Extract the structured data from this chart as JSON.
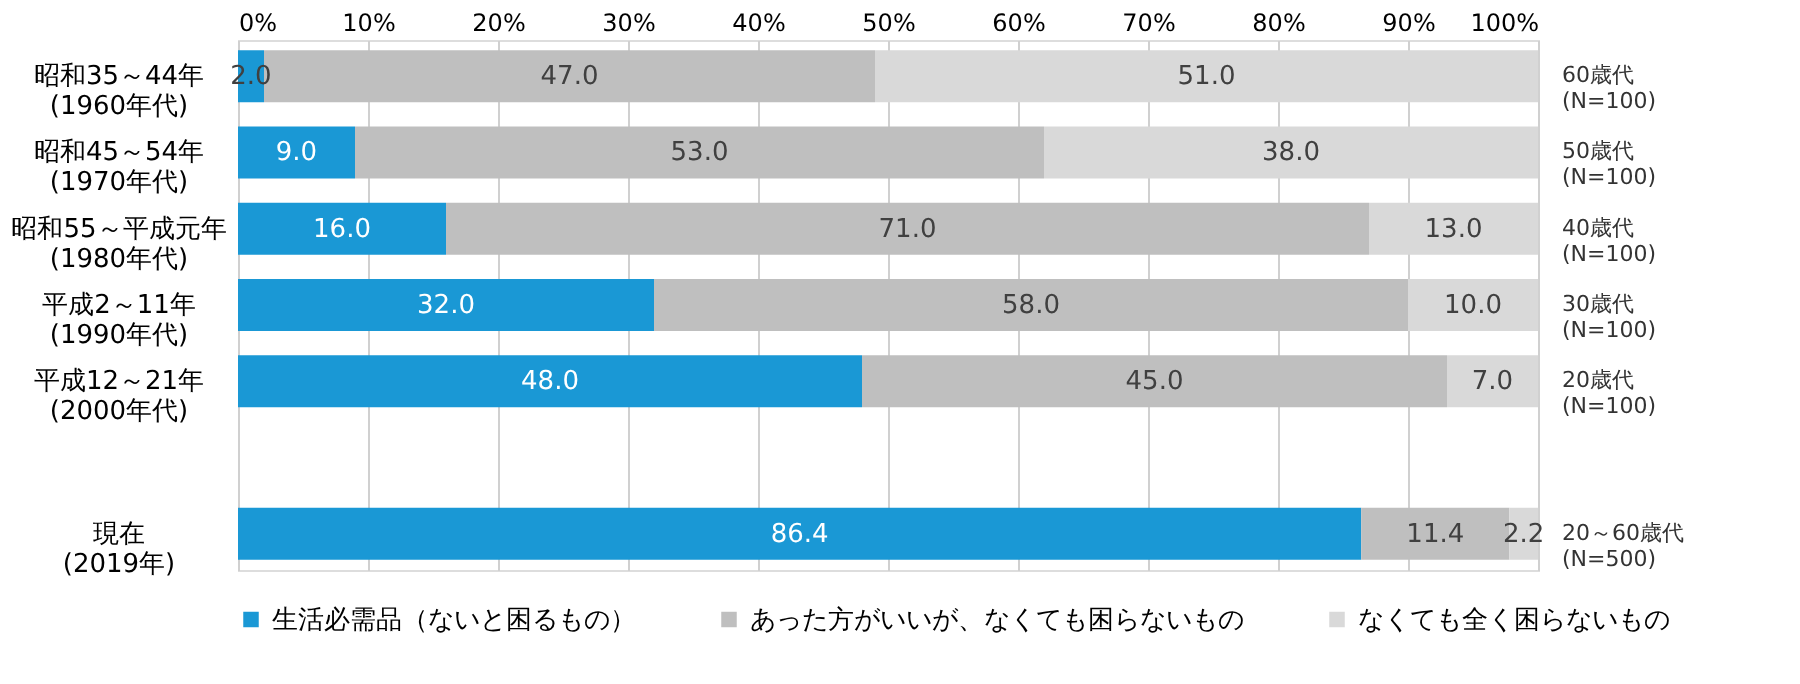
{
  "chart_data": {
    "type": "bar",
    "orientation": "horizontal",
    "stacked": true,
    "categories": [
      "昭和35～44年\n(1960年代)",
      "昭和45～54年\n(1970年代)",
      "昭和55～平成元年\n(1980年代)",
      "平成2～11年\n(1990年代)",
      "平成12～21年\n(2000年代)",
      null,
      "現在\n(2019年)"
    ],
    "series": [
      {
        "name": "生活必需品（ないと困るもの）",
        "color": "#1a98d5",
        "values": [
          2.0,
          9.0,
          16.0,
          32.0,
          48.0,
          null,
          86.4
        ],
        "value_labels": [
          "2.0",
          "9.0",
          "16.0",
          "32.0",
          "48.0",
          null,
          "86.4"
        ]
      },
      {
        "name": "あった方がいいが、なくても困らないもの",
        "color": "#bfbfbf",
        "values": [
          47.0,
          53.0,
          71.0,
          58.0,
          45.0,
          null,
          11.4
        ],
        "value_labels": [
          "47.0",
          "53.0",
          "71.0",
          "58.0",
          "45.0",
          null,
          "11.4"
        ]
      },
      {
        "name": "なくても全く困らないもの",
        "color": "#d9d9d9",
        "values": [
          51.0,
          38.0,
          13.0,
          10.0,
          7.0,
          null,
          2.2
        ],
        "value_labels": [
          "51.0",
          "38.0",
          "13.0",
          "10.0",
          "7.0",
          null,
          "2.2"
        ]
      }
    ],
    "xlim": [
      0,
      100
    ],
    "xticks": [
      {
        "value": 0,
        "label": "0%"
      },
      {
        "value": 10,
        "label": "10%"
      },
      {
        "value": 20,
        "label": "20%"
      },
      {
        "value": 30,
        "label": "30%"
      },
      {
        "value": 40,
        "label": "40%"
      },
      {
        "value": 50,
        "label": "50%"
      },
      {
        "value": 60,
        "label": "60%"
      },
      {
        "value": 70,
        "label": "70%"
      },
      {
        "value": 80,
        "label": "80%"
      },
      {
        "value": 90,
        "label": "90%"
      },
      {
        "value": 100,
        "label": "100%"
      }
    ],
    "grid": "x",
    "legend": "bottom",
    "annotations": [
      "60歳代\n(N=100)",
      "50歳代\n(N=100)",
      "40歳代\n(N=100)",
      "30歳代\n(N=100)",
      "20歳代\n(N=100)",
      "20～60歳代\n(N=500)"
    ]
  }
}
